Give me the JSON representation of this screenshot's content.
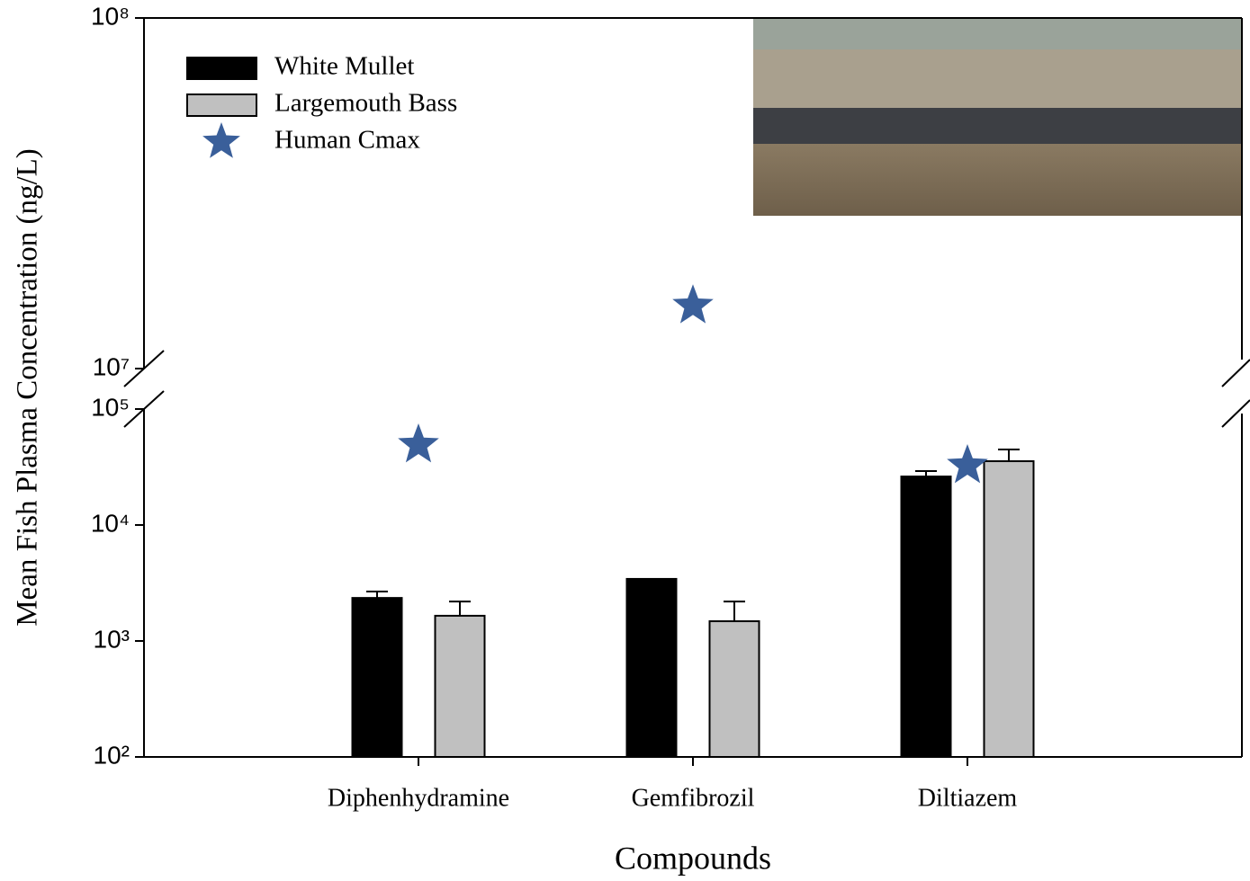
{
  "chart_data": {
    "type": "bar",
    "x_label": "Compounds",
    "y_label": "Mean Fish Plasma Concentration (ng/L)",
    "categories": [
      "Diphenhydramine",
      "Gemfibrozil",
      "Diltiazem"
    ],
    "series": [
      {
        "name": "White Mullet",
        "color": "#000000",
        "values": [
          2350,
          3430,
          26200
        ],
        "errors": [
          320,
          null,
          3000
        ]
      },
      {
        "name": "Largemouth Bass",
        "color": "#c0c0c0",
        "values": [
          1650,
          1480,
          35500
        ],
        "errors": [
          540,
          710,
          9300
        ]
      },
      {
        "name": "Human Cmax",
        "color": "#3a5f9a",
        "marker": "star",
        "values": [
          49000,
          15100000,
          32500
        ]
      }
    ],
    "log_scale": true,
    "ylim": [
      100,
      100000000
    ],
    "ybreak": [
      100000,
      10000000
    ],
    "yticks": [
      {
        "value": 100,
        "label": "10²"
      },
      {
        "value": 1000,
        "label": "10³"
      },
      {
        "value": 10000,
        "label": "10⁴"
      },
      {
        "value": 100000,
        "label": "10⁵"
      },
      {
        "value": 10000000,
        "label": "10⁷"
      },
      {
        "value": 100000000,
        "label": "10⁸"
      }
    ],
    "legend": "upper-left"
  }
}
